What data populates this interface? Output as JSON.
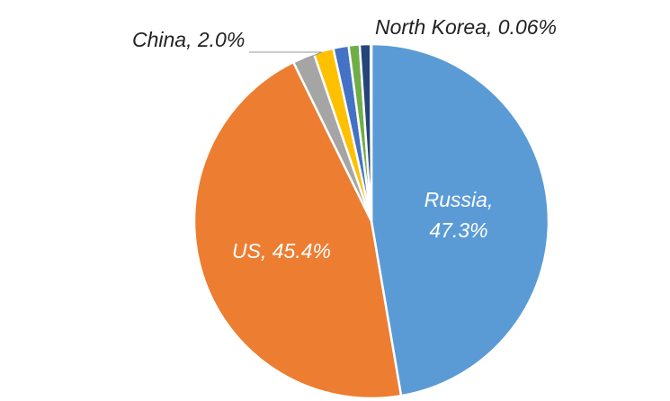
{
  "chart_data": {
    "type": "pie",
    "values": [
      47.3,
      45.4,
      2.0,
      1.8,
      1.4,
      1.0,
      1.0,
      0.06
    ],
    "value_labels": [
      "Russia, 47.3%",
      "US, 45.4%",
      "China, 2.0%",
      null,
      null,
      null,
      null,
      "North Korea, 0.06%"
    ],
    "colors": [
      "#5b9bd5",
      "#ed7d31",
      "#a5a5a5",
      "#ffc000",
      "#4472c4",
      "#70ad47",
      "#264478",
      "#9e480e"
    ]
  }
}
